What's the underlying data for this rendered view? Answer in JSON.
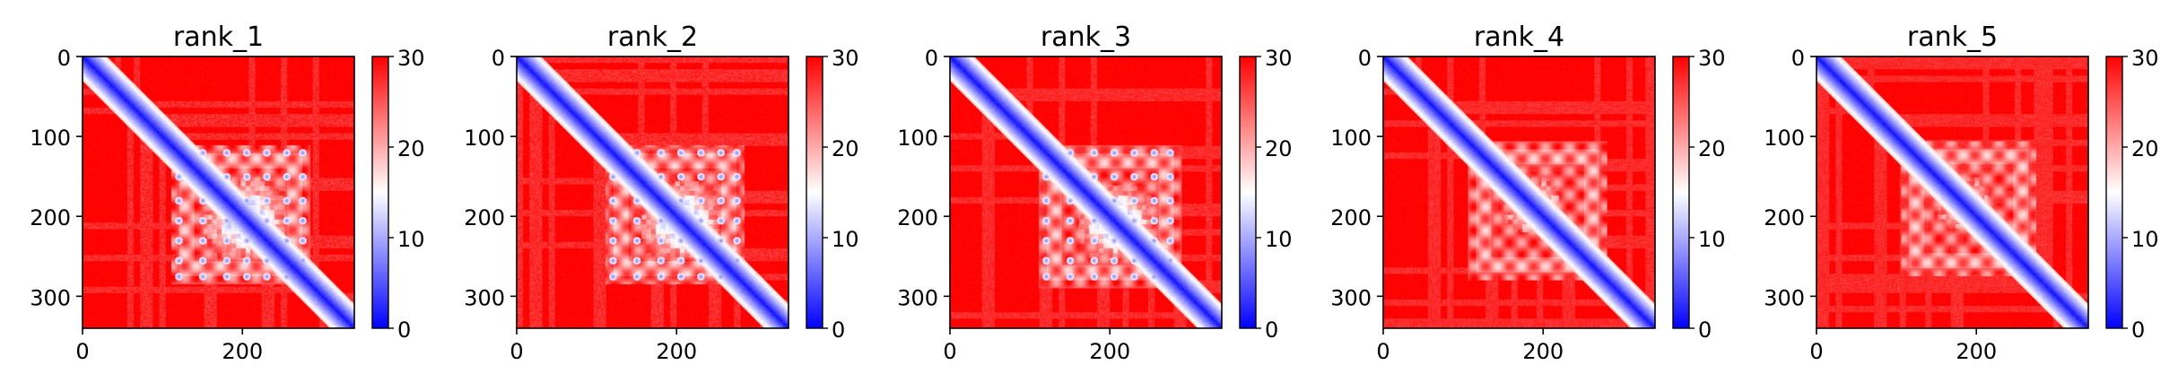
{
  "chart_data": [
    {
      "type": "heatmap",
      "title": "rank_1",
      "n": 340,
      "xlim": [
        0,
        340
      ],
      "ylim": [
        0,
        340
      ],
      "xticks": [
        0,
        200
      ],
      "yticks": [
        0,
        100,
        200,
        300
      ],
      "colorbar": {
        "min": 0,
        "max": 30,
        "ticks": [
          0,
          10,
          20,
          30
        ],
        "colors": [
          "#0000ff",
          "#ffffff",
          "#ff0000"
        ]
      },
      "features": {
        "domain_range": [
          120,
          275
        ],
        "core": [
          150,
          255
        ],
        "dots": true,
        "blobs": []
      }
    },
    {
      "type": "heatmap",
      "title": "rank_2",
      "n": 340,
      "xlim": [
        0,
        340
      ],
      "ylim": [
        0,
        340
      ],
      "xticks": [
        0,
        200
      ],
      "yticks": [
        0,
        100,
        200,
        300
      ],
      "colorbar": {
        "min": 0,
        "max": 30,
        "ticks": [
          0,
          10,
          20,
          30
        ],
        "colors": [
          "#0000ff",
          "#ffffff",
          "#ff0000"
        ]
      },
      "features": {
        "domain_range": [
          120,
          275
        ],
        "core": [
          155,
          255
        ],
        "dots": true,
        "blobs": []
      }
    },
    {
      "type": "heatmap",
      "title": "rank_3",
      "n": 340,
      "xlim": [
        0,
        340
      ],
      "ylim": [
        0,
        340
      ],
      "xticks": [
        0,
        200
      ],
      "yticks": [
        0,
        100,
        200,
        300
      ],
      "colorbar": {
        "min": 0,
        "max": 30,
        "ticks": [
          0,
          10,
          20,
          30
        ],
        "colors": [
          "#0000ff",
          "#ffffff",
          "#ff0000"
        ]
      },
      "features": {
        "domain_range": [
          120,
          280
        ],
        "core": [
          160,
          255
        ],
        "dots": true,
        "blobs": []
      }
    },
    {
      "type": "heatmap",
      "title": "rank_4",
      "n": 340,
      "xlim": [
        0,
        340
      ],
      "ylim": [
        0,
        340
      ],
      "xticks": [
        0,
        200
      ],
      "yticks": [
        0,
        100,
        200,
        300
      ],
      "colorbar": {
        "min": 0,
        "max": 30,
        "ticks": [
          0,
          10,
          20,
          30
        ],
        "colors": [
          "#0000ff",
          "#ffffff",
          "#ff0000"
        ]
      },
      "features": {
        "domain_range": [
          115,
          270
        ],
        "core": [
          150,
          220
        ],
        "dots": false,
        "blobs": [
          160,
          185,
          210,
          240,
          275,
          310
        ]
      }
    },
    {
      "type": "heatmap",
      "title": "rank_5",
      "n": 340,
      "xlim": [
        0,
        340
      ],
      "ylim": [
        0,
        340
      ],
      "xticks": [
        0,
        200
      ],
      "yticks": [
        0,
        100,
        200,
        300
      ],
      "colorbar": {
        "min": 0,
        "max": 30,
        "ticks": [
          0,
          10,
          20,
          30
        ],
        "colors": [
          "#0000ff",
          "#ffffff",
          "#ff0000"
        ]
      },
      "features": {
        "domain_range": [
          115,
          265
        ],
        "core": [
          150,
          215
        ],
        "dots": false,
        "blobs": [
          160,
          185,
          210,
          240,
          275,
          310
        ]
      }
    }
  ]
}
